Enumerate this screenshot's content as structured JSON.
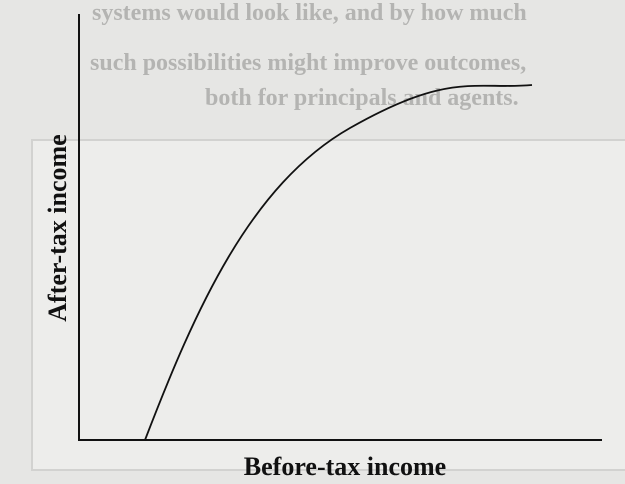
{
  "faint_text": [
    "systems would look like, and by how much",
    "such possibilities might improve outcomes,",
    "both for principals and agents."
  ],
  "y_axis_label": "After-tax income",
  "x_axis_label": "Before-tax income"
}
